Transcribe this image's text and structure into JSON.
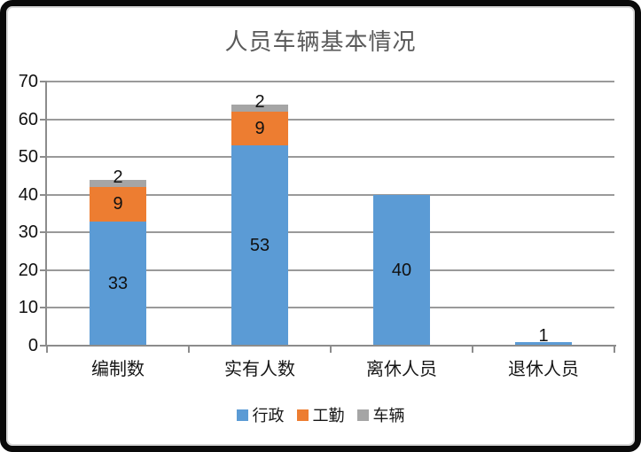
{
  "chart_data": {
    "type": "bar",
    "stacked": true,
    "title": "人员车辆基本情况",
    "categories": [
      "编制数",
      "实有人数",
      "离休人员",
      "退休人员"
    ],
    "series": [
      {
        "id": "admin",
        "name": "行政",
        "color": "#5B9BD5",
        "values": [
          33,
          53,
          40,
          1
        ]
      },
      {
        "id": "logistics",
        "name": "工勤",
        "color": "#ED7D31",
        "values": [
          9,
          9,
          0,
          0
        ]
      },
      {
        "id": "vehicles",
        "name": "车辆",
        "color": "#A5A5A5",
        "values": [
          2,
          2,
          0,
          0
        ]
      }
    ],
    "totals": [
      44,
      64,
      40,
      1
    ],
    "ylim": [
      0,
      70
    ],
    "yticks": [
      0,
      10,
      20,
      30,
      40,
      50,
      60,
      70
    ],
    "grid": true,
    "legend_position": "bottom",
    "data_labels": true
  },
  "styles": {
    "title_color": "#595959",
    "grid_color": "#9A9A9A",
    "axis_color": "#8C8C8C",
    "label_color": "#111111",
    "frame_color": "#0A0A0A",
    "background": "#FFFFFF"
  }
}
